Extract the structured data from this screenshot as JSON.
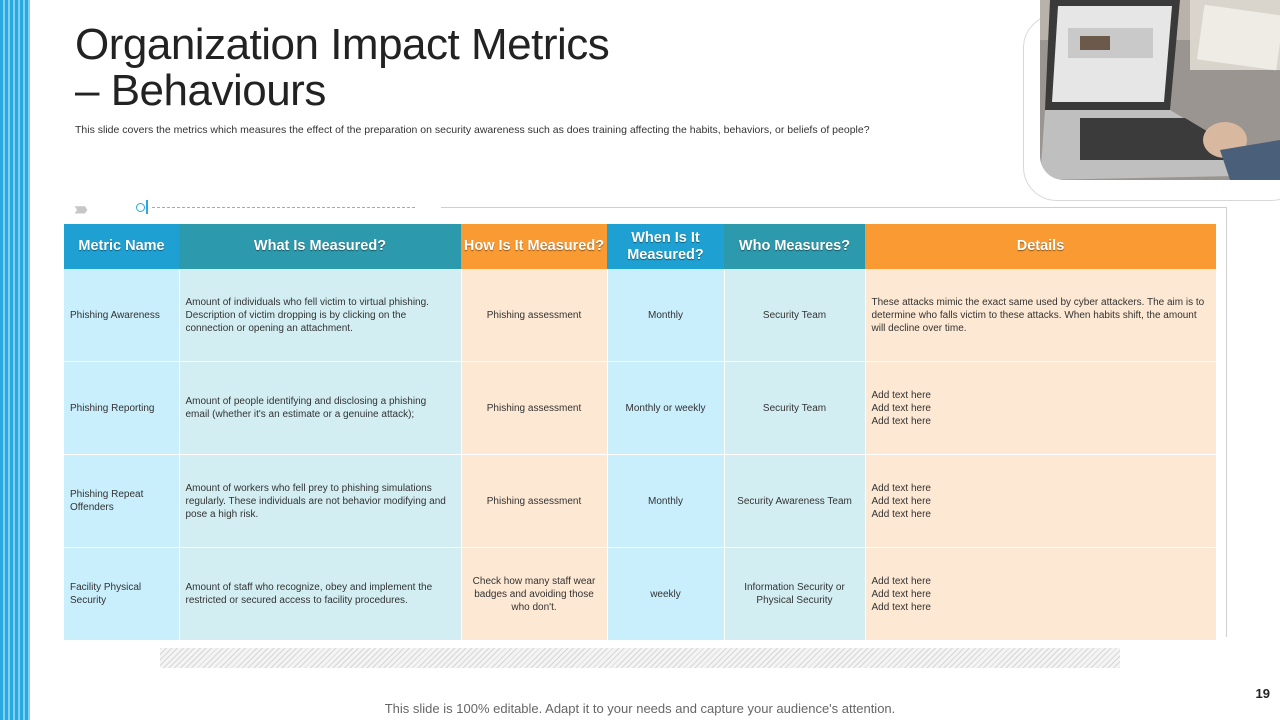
{
  "slide": {
    "title": "Organization Impact Metrics – Behaviours",
    "subtitle": "This slide covers the metrics which measures the effect of the preparation on security awareness such as does training affecting the habits, behaviors, or beliefs of people?",
    "footer": "This slide is 100% editable. Adapt it to your needs and capture your audience's attention.",
    "page_number": "19"
  },
  "table": {
    "headers": {
      "metric": "Metric Name",
      "what": "What Is Measured?",
      "how": "How Is It Measured?",
      "when": "When Is It Measured?",
      "who": "Who Measures?",
      "details": "Details"
    },
    "rows": [
      {
        "metric": "Phishing Awareness",
        "what": "Amount of individuals who fell victim to virtual phishing. Description of victim dropping is by clicking on the connection or opening an attachment.",
        "how": "Phishing assessment",
        "when": "Monthly",
        "who": "Security Team",
        "details": [
          "These attacks mimic the exact same used by cyber attackers. The aim is to determine who falls victim to these attacks. When habits shift, the amount will decline over time."
        ]
      },
      {
        "metric": "Phishing Reporting",
        "what": "Amount of people identifying and disclosing a phishing email (whether it's an estimate or a genuine attack);",
        "how": "Phishing assessment",
        "when": "Monthly or weekly",
        "who": "Security Team",
        "details": [
          "Add text here",
          "Add text here",
          "Add text here"
        ]
      },
      {
        "metric": "Phishing Repeat Offenders",
        "what": "Amount of workers who fell prey to phishing simulations regularly. These individuals are not behavior modifying and pose a high risk.",
        "how": "Phishing assessment",
        "when": "Monthly",
        "who": "Security Awareness Team",
        "details": [
          "Add text here",
          "Add text here",
          "Add text here"
        ]
      },
      {
        "metric": "Facility Physical Security",
        "what": "Amount of staff who recognize, obey and implement the restricted or secured access to facility procedures.",
        "how": "Check how many staff wear badges and avoiding those who don't.",
        "when": "weekly",
        "who": "Information Security or Physical Security",
        "details": [
          "Add text here",
          "Add text here",
          "Add text here"
        ]
      }
    ]
  },
  "colors": {
    "accent_blue": "#1ea1d2",
    "teal": "#2d99ac",
    "orange": "#f99a32"
  }
}
